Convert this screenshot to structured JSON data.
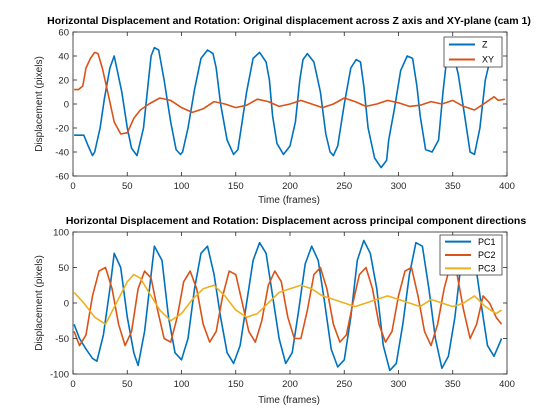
{
  "chart_data": [
    {
      "type": "line",
      "title": "Horizontal Displacement and Rotation: Original displacement across Z axis and XY-plane (cam 1)",
      "xlabel": "Time (frames)",
      "ylabel": "Displacement (pixels)",
      "xlim": [
        0,
        400
      ],
      "ylim": [
        -60,
        60
      ],
      "xticks": [
        0,
        50,
        100,
        150,
        200,
        250,
        300,
        350,
        400
      ],
      "yticks": [
        -60,
        -40,
        -20,
        0,
        20,
        40,
        60
      ],
      "grid": false,
      "legend": "top-right",
      "series": [
        {
          "name": "Z",
          "color": "#0072BD",
          "x": [
            1,
            8,
            10,
            14,
            18,
            20,
            25,
            29,
            34,
            38,
            45,
            50,
            54,
            59,
            65,
            69,
            72,
            75,
            79,
            84,
            90,
            95,
            99,
            101,
            106,
            112,
            118,
            124,
            129,
            132,
            136,
            142,
            148,
            152,
            155,
            160,
            166,
            172,
            178,
            181,
            184,
            188,
            194,
            200,
            205,
            209,
            212,
            216,
            222,
            228,
            233,
            237,
            240,
            244,
            250,
            256,
            261,
            265,
            268,
            272,
            278,
            284,
            289,
            291,
            296,
            302,
            308,
            313,
            317,
            320,
            325,
            331,
            337,
            341,
            345,
            349,
            355,
            361,
            366,
            370,
            375,
            380,
            386,
            391,
            393
          ],
          "y": [
            -26,
            -26,
            -26,
            -35,
            -43,
            -40,
            -20,
            5,
            30,
            40,
            10,
            -20,
            -37,
            -43,
            -20,
            15,
            40,
            47,
            45,
            20,
            -15,
            -38,
            -42,
            -40,
            -20,
            12,
            38,
            45,
            42,
            30,
            0,
            -30,
            -42,
            -38,
            -20,
            10,
            38,
            43,
            35,
            20,
            -10,
            -33,
            -42,
            -35,
            -15,
            20,
            37,
            42,
            35,
            10,
            -25,
            -40,
            -43,
            -35,
            0,
            30,
            37,
            35,
            15,
            -20,
            -45,
            -53,
            -47,
            -30,
            -5,
            28,
            40,
            38,
            15,
            -10,
            -38,
            -40,
            -30,
            10,
            42,
            47,
            25,
            -10,
            -40,
            -42,
            -20,
            20,
            43,
            40,
            38
          ]
        },
        {
          "name": "XY",
          "color": "#D95319",
          "x": [
            1,
            5,
            9,
            12,
            16,
            20,
            23,
            27,
            32,
            38,
            44,
            50,
            56,
            62,
            70,
            80,
            90,
            100,
            110,
            120,
            130,
            140,
            150,
            160,
            170,
            180,
            190,
            200,
            210,
            220,
            230,
            240,
            250,
            260,
            270,
            280,
            290,
            300,
            310,
            320,
            330,
            340,
            350,
            360,
            370,
            380,
            388,
            392,
            398
          ],
          "y": [
            12,
            12,
            15,
            30,
            38,
            43,
            42,
            30,
            10,
            -15,
            -25,
            -24,
            -12,
            -5,
            0,
            5,
            3,
            -3,
            -7,
            -4,
            2,
            0,
            -3,
            -1,
            4,
            2,
            -2,
            0,
            3,
            0,
            -3,
            0,
            5,
            2,
            -2,
            0,
            3,
            1,
            -2,
            -1,
            2,
            0,
            3,
            -2,
            -5,
            1,
            6,
            3,
            4
          ]
        }
      ]
    },
    {
      "type": "line",
      "title": "Horizontal Displacement and Rotation: Displacement across principal component directions",
      "xlabel": "Time (frames)",
      "ylabel": "Displacement (pixels)",
      "xlim": [
        0,
        400
      ],
      "ylim": [
        -100,
        100
      ],
      "xticks": [
        0,
        50,
        100,
        150,
        200,
        250,
        300,
        350,
        400
      ],
      "yticks": [
        -100,
        -50,
        0,
        50,
        100
      ],
      "grid": false,
      "legend": "top-right",
      "series": [
        {
          "name": "PC1",
          "color": "#0072BD",
          "x": [
            1,
            6,
            12,
            18,
            22,
            28,
            34,
            38,
            44,
            50,
            56,
            60,
            66,
            72,
            75,
            82,
            88,
            94,
            100,
            106,
            112,
            118,
            124,
            130,
            136,
            142,
            148,
            154,
            160,
            166,
            172,
            178,
            184,
            190,
            196,
            202,
            208,
            214,
            220,
            226,
            232,
            238,
            244,
            250,
            256,
            262,
            268,
            274,
            280,
            286,
            292,
            298,
            304,
            310,
            316,
            322,
            328,
            334,
            340,
            346,
            352,
            358,
            364,
            370,
            376,
            382,
            388,
            395
          ],
          "y": [
            -30,
            -50,
            -65,
            -78,
            -82,
            -45,
            20,
            70,
            50,
            -20,
            -70,
            -88,
            -40,
            40,
            80,
            60,
            -20,
            -70,
            -80,
            -50,
            20,
            70,
            80,
            40,
            -20,
            -70,
            -85,
            -60,
            0,
            60,
            85,
            70,
            10,
            -50,
            -85,
            -70,
            -10,
            55,
            80,
            60,
            0,
            -65,
            -90,
            -80,
            -20,
            60,
            88,
            70,
            20,
            -60,
            -95,
            -85,
            -30,
            40,
            85,
            80,
            20,
            -50,
            -92,
            -75,
            -20,
            60,
            90,
            65,
            0,
            -60,
            -75,
            -50
          ]
        },
        {
          "name": "PC2",
          "color": "#D95319",
          "x": [
            1,
            6,
            12,
            18,
            24,
            30,
            36,
            42,
            48,
            54,
            60,
            66,
            72,
            78,
            84,
            90,
            96,
            102,
            108,
            114,
            120,
            126,
            132,
            138,
            144,
            150,
            156,
            162,
            168,
            174,
            180,
            186,
            192,
            198,
            204,
            210,
            216,
            222,
            228,
            234,
            240,
            246,
            252,
            258,
            264,
            270,
            276,
            282,
            288,
            294,
            300,
            306,
            312,
            318,
            324,
            330,
            336,
            342,
            348,
            354,
            360,
            366,
            372,
            378,
            384,
            390,
            395
          ],
          "y": [
            -40,
            -60,
            -45,
            10,
            45,
            50,
            20,
            -30,
            -60,
            -40,
            20,
            45,
            35,
            -10,
            -50,
            -55,
            -20,
            30,
            45,
            20,
            -30,
            -55,
            -40,
            10,
            45,
            40,
            0,
            -40,
            -55,
            -25,
            25,
            45,
            30,
            -20,
            -50,
            -50,
            -10,
            40,
            50,
            20,
            -30,
            -55,
            -45,
            0,
            40,
            50,
            20,
            -30,
            -55,
            -40,
            10,
            45,
            50,
            10,
            -40,
            -60,
            -30,
            20,
            55,
            40,
            -10,
            -50,
            -30,
            10,
            0,
            -20,
            -30
          ]
        },
        {
          "name": "PC3",
          "color": "#EDB120",
          "x": [
            1,
            10,
            20,
            30,
            40,
            50,
            56,
            62,
            70,
            80,
            90,
            100,
            110,
            120,
            130,
            140,
            150,
            160,
            170,
            180,
            190,
            200,
            210,
            220,
            230,
            240,
            250,
            260,
            270,
            280,
            290,
            300,
            310,
            320,
            330,
            340,
            350,
            360,
            370,
            380,
            390,
            395
          ],
          "y": [
            15,
            0,
            -20,
            -30,
            0,
            30,
            40,
            35,
            15,
            -10,
            -25,
            -15,
            5,
            20,
            25,
            10,
            -10,
            -20,
            -15,
            0,
            15,
            20,
            25,
            20,
            10,
            5,
            0,
            -5,
            0,
            5,
            10,
            5,
            0,
            -5,
            5,
            0,
            -5,
            0,
            10,
            -5,
            -15,
            -10
          ]
        }
      ]
    }
  ]
}
